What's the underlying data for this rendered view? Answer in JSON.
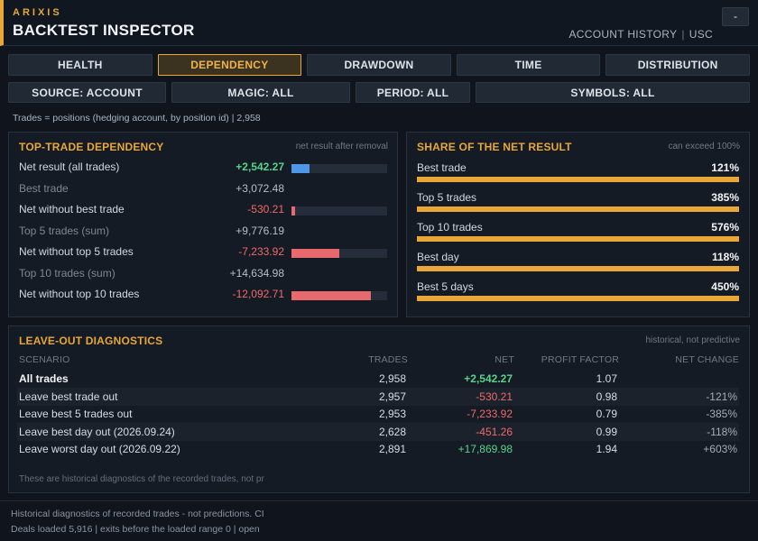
{
  "header": {
    "brand": "ARIXIS",
    "title": "BACKTEST INSPECTOR",
    "links": [
      "ACCOUNT HISTORY",
      "USC"
    ],
    "minimize_label": "-"
  },
  "tabs": [
    {
      "label": "HEALTH",
      "active": false
    },
    {
      "label": "DEPENDENCY",
      "active": true
    },
    {
      "label": "DRAWDOWN",
      "active": false
    },
    {
      "label": "TIME",
      "active": false
    },
    {
      "label": "DISTRIBUTION",
      "active": false
    }
  ],
  "filters": [
    {
      "label": "SOURCE: ACCOUNT"
    },
    {
      "label": "MAGIC: ALL"
    },
    {
      "label": "PERIOD: ALL"
    },
    {
      "label": "SYMBOLS: ALL"
    }
  ],
  "trades_info": "Trades = positions (hedging account, by position id)  |  2,958",
  "dependency": {
    "title": "TOP-TRADE DEPENDENCY",
    "note": "net result after removal",
    "rows": [
      {
        "label": "Net result (all trades)",
        "value": "+2,542.27",
        "kind": "pos",
        "dim": false,
        "bar": 0.19,
        "bar_color": "#4f95e8"
      },
      {
        "label": "Best trade",
        "value": "+3,072.48",
        "kind": "neutral",
        "dim": true,
        "bar": null
      },
      {
        "label": "Net without best trade",
        "value": "-530.21",
        "kind": "neg",
        "dim": false,
        "bar": 0.04,
        "bar_color": "#e86a6e"
      },
      {
        "label": "Top 5 trades (sum)",
        "value": "+9,776.19",
        "kind": "neutral",
        "dim": true,
        "bar": null
      },
      {
        "label": "Net without top 5 trades",
        "value": "-7,233.92",
        "kind": "neg",
        "dim": false,
        "bar": 0.5,
        "bar_color": "#e86a6e"
      },
      {
        "label": "Top 10 trades (sum)",
        "value": "+14,634.98",
        "kind": "neutral",
        "dim": true,
        "bar": null
      },
      {
        "label": "Net without top 10 trades",
        "value": "-12,092.71",
        "kind": "neg",
        "dim": false,
        "bar": 0.83,
        "bar_color": "#e86a6e"
      }
    ]
  },
  "share": {
    "title": "SHARE OF THE NET RESULT",
    "note": "can exceed 100%",
    "items": [
      {
        "label": "Best trade",
        "pct": "121%"
      },
      {
        "label": "Top 5 trades",
        "pct": "385%"
      },
      {
        "label": "Top 10 trades",
        "pct": "576%"
      },
      {
        "label": "Best day",
        "pct": "118%"
      },
      {
        "label": "Best 5 days",
        "pct": "450%"
      }
    ]
  },
  "leaveout": {
    "title": "LEAVE-OUT DIAGNOSTICS",
    "note": "historical, not predictive",
    "columns": [
      "SCENARIO",
      "TRADES",
      "NET",
      "PROFIT FACTOR",
      "NET CHANGE"
    ],
    "rows": [
      {
        "scenario": "All trades",
        "trades": "2,958",
        "net": "+2,542.27",
        "net_kind": "pos",
        "pf": "1.07",
        "change": "",
        "bold": true
      },
      {
        "scenario": "Leave best trade out",
        "trades": "2,957",
        "net": "-530.21",
        "net_kind": "neg",
        "pf": "0.98",
        "change": "-121%",
        "bold": false
      },
      {
        "scenario": "Leave best 5 trades out",
        "trades": "2,953",
        "net": "-7,233.92",
        "net_kind": "neg",
        "pf": "0.79",
        "change": "-385%",
        "bold": false
      },
      {
        "scenario": "Leave best day out (2026.09.24)",
        "trades": "2,628",
        "net": "-451.26",
        "net_kind": "neg",
        "pf": "0.99",
        "change": "-118%",
        "bold": false
      },
      {
        "scenario": "Leave worst day out (2026.09.22)",
        "trades": "2,891",
        "net": "+17,869.98",
        "net_kind": "pos",
        "pf": "1.94",
        "change": "+603%",
        "bold": false
      }
    ],
    "footnote": "These are historical diagnostics of the recorded trades, not pr"
  },
  "footer": {
    "line1": "Historical diagnostics of recorded trades - not predictions. CI",
    "line2": "Deals loaded 5,916  |  exits before the loaded range 0  |  open"
  },
  "colors": {
    "accent": "#e8a736",
    "positive": "#57d38a",
    "negative": "#f06a6a",
    "info_bar": "#4f95e8"
  }
}
